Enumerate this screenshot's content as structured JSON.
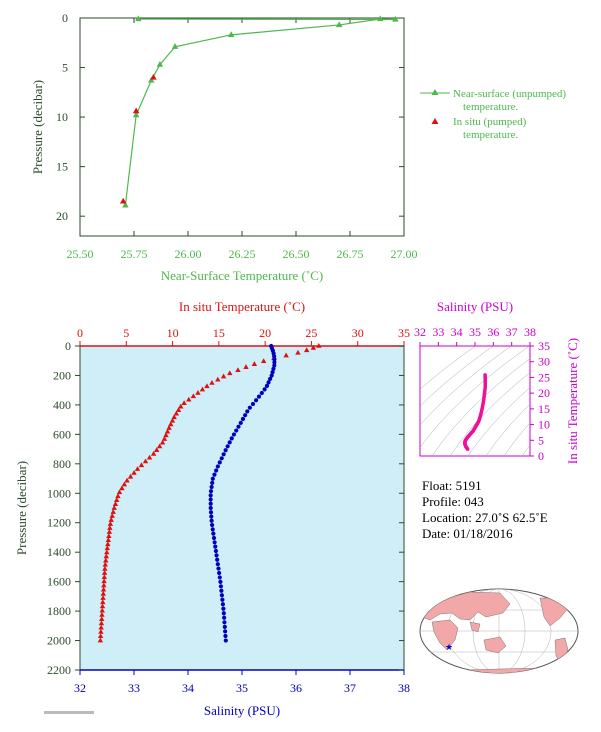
{
  "chart_data": [
    {
      "type": "line",
      "panel": "top",
      "xlabel": "Near-Surface Temperature (˚C)",
      "ylabel": "Pressure (decibar)",
      "xlim": [
        25.5,
        27.0
      ],
      "ylim": [
        22,
        0
      ],
      "xticks": [
        "25.50",
        "25.75",
        "26.00",
        "26.25",
        "26.50",
        "26.75",
        "27.00"
      ],
      "yticks": [
        "0",
        "5",
        "10",
        "15",
        "20"
      ],
      "legend": [
        "Near-surface (unpumped) temperature.",
        "In situ (pumped) temperature."
      ],
      "legend_position": "right",
      "series": [
        {
          "name": "Near-surface (unpumped) temperature.",
          "color": "#4db84d",
          "marker": "triangle",
          "points": [
            [
              25.77,
              0.1
            ],
            [
              26.96,
              0.15
            ],
            [
              26.89,
              0.1
            ],
            [
              26.7,
              0.7
            ],
            [
              26.2,
              1.7
            ],
            [
              25.94,
              2.9
            ],
            [
              25.87,
              4.7
            ],
            [
              25.83,
              6.3
            ],
            [
              25.76,
              9.8
            ],
            [
              25.71,
              18.9
            ]
          ]
        },
        {
          "name": "In situ (pumped) temperature.",
          "color": "#dd1111",
          "marker": "triangle",
          "points": [
            [
              25.84,
              6.0
            ],
            [
              25.76,
              9.4
            ],
            [
              25.7,
              18.5
            ]
          ]
        }
      ]
    },
    {
      "type": "scatter",
      "panel": "bottom",
      "ylabel": "Pressure (decibar)",
      "ylim": [
        2200,
        0
      ],
      "yticks": [
        "0",
        "200",
        "400",
        "600",
        "800",
        "1000",
        "1200",
        "1400",
        "1600",
        "1800",
        "2000",
        "2200"
      ],
      "x_top": {
        "label": "In situ Temperature (˚C)",
        "lim": [
          0,
          35
        ],
        "ticks": [
          "0",
          "5",
          "10",
          "15",
          "20",
          "25",
          "30",
          "35"
        ],
        "color": "#dd1111"
      },
      "x_bottom": {
        "label": "Salinity (PSU)",
        "lim": [
          32,
          38
        ],
        "ticks": [
          "32",
          "33",
          "34",
          "35",
          "36",
          "37",
          "38"
        ],
        "color": "#0000bb"
      },
      "series": [
        {
          "name": "In situ Temperature",
          "color": "#dd1111",
          "marker": "triangle",
          "profile": [
            [
              25.8,
              0
            ],
            [
              24,
              40
            ],
            [
              20.5,
              90
            ],
            [
              18.5,
              130
            ],
            [
              16,
              190
            ],
            [
              14,
              260
            ],
            [
              12.5,
              330
            ],
            [
              11,
              400
            ],
            [
              10.2,
              480
            ],
            [
              9.6,
              560
            ],
            [
              9.0,
              650
            ],
            [
              8.0,
              730
            ],
            [
              6.3,
              830
            ],
            [
              5.0,
              920
            ],
            [
              4.2,
              1000
            ],
            [
              3.7,
              1100
            ],
            [
              3.3,
              1200
            ],
            [
              3.1,
              1300
            ],
            [
              2.9,
              1400
            ],
            [
              2.7,
              1500
            ],
            [
              2.6,
              1600
            ],
            [
              2.5,
              1700
            ],
            [
              2.4,
              1800
            ],
            [
              2.3,
              1900
            ],
            [
              2.2,
              2000
            ]
          ],
          "count": 80
        },
        {
          "name": "Salinity",
          "color": "#0000bb",
          "marker": "circle",
          "profile": [
            [
              35.54,
              0
            ],
            [
              35.58,
              40
            ],
            [
              35.6,
              80
            ],
            [
              35.6,
              130
            ],
            [
              35.55,
              200
            ],
            [
              35.45,
              280
            ],
            [
              35.28,
              360
            ],
            [
              35.12,
              430
            ],
            [
              34.98,
              520
            ],
            [
              34.82,
              620
            ],
            [
              34.68,
              720
            ],
            [
              34.55,
              820
            ],
            [
              34.46,
              900
            ],
            [
              34.42,
              1000
            ],
            [
              34.42,
              1100
            ],
            [
              34.44,
              1200
            ],
            [
              34.48,
              1300
            ],
            [
              34.52,
              1400
            ],
            [
              34.56,
              1500
            ],
            [
              34.6,
              1600
            ],
            [
              34.63,
              1700
            ],
            [
              34.66,
              1800
            ],
            [
              34.68,
              1900
            ],
            [
              34.7,
              2000
            ]
          ],
          "count": 75
        }
      ]
    },
    {
      "type": "scatter",
      "panel": "ts-diagram",
      "xlabel": "Salinity (PSU)",
      "ylabel": "In situ Temperature (˚C)",
      "xlim": [
        32,
        38
      ],
      "ylim": [
        0,
        35
      ],
      "xticks": [
        "32",
        "33",
        "34",
        "35",
        "36",
        "37",
        "38"
      ],
      "yticks": [
        "0",
        "5",
        "10",
        "15",
        "20",
        "25",
        "30",
        "35"
      ],
      "axis_color": "#cc00cc",
      "series": [
        {
          "name": "T-S",
          "color": "#ee1199",
          "points": [
            [
              34.6,
              2.2
            ],
            [
              34.5,
              3
            ],
            [
              34.45,
              3.8
            ],
            [
              34.45,
              4.5
            ],
            [
              34.5,
              5.2
            ],
            [
              34.6,
              6
            ],
            [
              34.75,
              7
            ],
            [
              34.9,
              8
            ],
            [
              35.0,
              9
            ],
            [
              35.1,
              10
            ],
            [
              35.2,
              11
            ],
            [
              35.28,
              12.5
            ],
            [
              35.35,
              14
            ],
            [
              35.42,
              16
            ],
            [
              35.48,
              18
            ],
            [
              35.52,
              20
            ],
            [
              35.56,
              22
            ],
            [
              35.56,
              24
            ],
            [
              35.55,
              25.8
            ]
          ]
        }
      ]
    }
  ],
  "float_info": {
    "float": "Float:  5191",
    "profile": "Profile:  043",
    "location": "Location:  27.0˚S  62.5˚E",
    "date": "Date:  01/18/2016"
  },
  "colors": {
    "green": "#4db84d",
    "red": "#dd1111",
    "blue": "#0000bb",
    "magenta": "#cc00cc",
    "axis_dark": "#2d4a2d",
    "plot_bg": "#cfeef8",
    "land": "#f2a8a8"
  }
}
